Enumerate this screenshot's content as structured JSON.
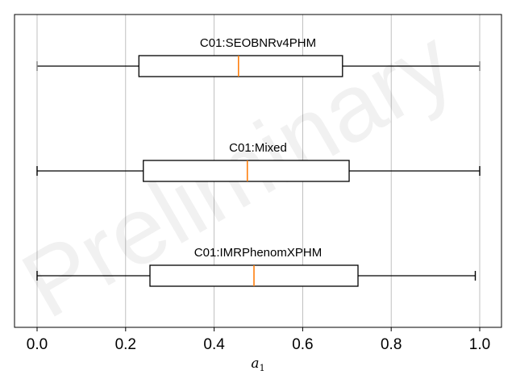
{
  "chart_data": {
    "type": "boxplot",
    "orientation": "horizontal",
    "xlabel": "a",
    "xlabel_subscript": "1",
    "xlim": [
      -0.05,
      1.05
    ],
    "xticks": [
      0.0,
      0.2,
      0.4,
      0.6,
      0.8,
      1.0
    ],
    "xtick_labels": [
      "0.0",
      "0.2",
      "0.4",
      "0.6",
      "0.8",
      "1.0"
    ],
    "grid": "vertical",
    "watermark": "Preliminary",
    "series": [
      {
        "name": "C01:SEOBNRv4PHM",
        "whisker_low": 0.0,
        "q1": 0.23,
        "median": 0.455,
        "q3": 0.69,
        "whisker_high": 1.0
      },
      {
        "name": "C01:Mixed",
        "whisker_low": 0.0,
        "q1": 0.24,
        "median": 0.475,
        "q3": 0.705,
        "whisker_high": 1.0
      },
      {
        "name": "C01:IMRPhenomXPHM",
        "whisker_low": 0.0,
        "q1": 0.255,
        "median": 0.49,
        "q3": 0.725,
        "whisker_high": 0.99
      }
    ],
    "colors": {
      "box": "#000000",
      "median": "#ff7f0e",
      "grid": "#b0b0b0",
      "whisker_cap_light": "#808080"
    }
  }
}
